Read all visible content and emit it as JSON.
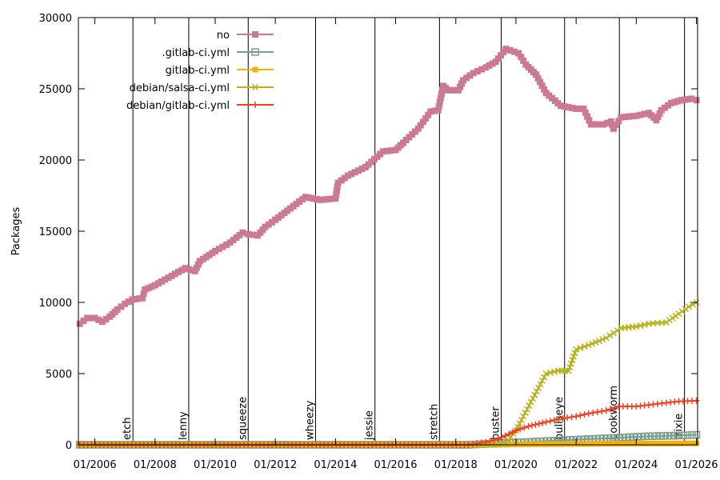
{
  "chart_data": {
    "type": "line",
    "ylabel": "Packages",
    "xlabel": "",
    "ylim": [
      0,
      30000
    ],
    "xlim": [
      "2005-06-15",
      "2026-01-15"
    ],
    "y_ticks": [
      0,
      5000,
      10000,
      15000,
      20000,
      25000,
      30000
    ],
    "x_ticks": [
      "2006-01-01",
      "2008-01-01",
      "2010-01-01",
      "2012-01-01",
      "2014-01-01",
      "2016-01-01",
      "2018-01-01",
      "2020-01-01",
      "2022-01-01",
      "2024-01-01",
      "2026-01-01"
    ],
    "x_tick_labels": [
      "01/2006",
      "01/2008",
      "01/2010",
      "01/2012",
      "01/2014",
      "01/2016",
      "01/2018",
      "01/2020",
      "01/2022",
      "01/2024",
      "01/2026"
    ],
    "legend_position": "top-left",
    "grid": false,
    "releases": [
      {
        "name": "etch",
        "date": "2007-04-08"
      },
      {
        "name": "lenny",
        "date": "2009-02-14"
      },
      {
        "name": "squeeze",
        "date": "2011-02-06"
      },
      {
        "name": "wheezy",
        "date": "2013-05-04"
      },
      {
        "name": "jessie",
        "date": "2015-04-25"
      },
      {
        "name": "stretch",
        "date": "2017-06-17"
      },
      {
        "name": "buster",
        "date": "2019-07-06"
      },
      {
        "name": "bullseye",
        "date": "2021-08-14"
      },
      {
        "name": "bookworm",
        "date": "2023-06-10"
      },
      {
        "name": "trixie",
        "date": "2025-08-09"
      }
    ],
    "series": [
      {
        "name": "no",
        "color": "#cc7a93",
        "marker": "square",
        "points": [
          [
            "2005-07-01",
            8500
          ],
          [
            "2005-10-01",
            8900
          ],
          [
            "2006-01-01",
            8900
          ],
          [
            "2006-04-01",
            8650
          ],
          [
            "2006-07-01",
            9000
          ],
          [
            "2006-10-01",
            9500
          ],
          [
            "2007-01-01",
            9900
          ],
          [
            "2007-04-01",
            10200
          ],
          [
            "2007-08-01",
            10300
          ],
          [
            "2007-09-01",
            10900
          ],
          [
            "2008-01-01",
            11200
          ],
          [
            "2008-05-01",
            11600
          ],
          [
            "2008-09-01",
            12000
          ],
          [
            "2009-01-01",
            12400
          ],
          [
            "2009-05-01",
            12200
          ],
          [
            "2009-07-01",
            12900
          ],
          [
            "2010-01-01",
            13600
          ],
          [
            "2010-07-01",
            14200
          ],
          [
            "2010-12-01",
            14900
          ],
          [
            "2011-02-01",
            14800
          ],
          [
            "2011-06-01",
            14700
          ],
          [
            "2011-09-01",
            15300
          ],
          [
            "2012-01-01",
            15800
          ],
          [
            "2012-07-01",
            16600
          ],
          [
            "2013-01-01",
            17400
          ],
          [
            "2013-07-01",
            17200
          ],
          [
            "2014-01-01",
            17300
          ],
          [
            "2014-02-01",
            18400
          ],
          [
            "2014-06-01",
            18900
          ],
          [
            "2015-01-01",
            19500
          ],
          [
            "2015-08-01",
            20600
          ],
          [
            "2016-01-01",
            20700
          ],
          [
            "2016-04-01",
            21200
          ],
          [
            "2016-10-01",
            22200
          ],
          [
            "2017-03-01",
            23400
          ],
          [
            "2017-06-01",
            23500
          ],
          [
            "2017-08-01",
            25200
          ],
          [
            "2017-10-01",
            24900
          ],
          [
            "2018-02-01",
            24900
          ],
          [
            "2018-04-01",
            25600
          ],
          [
            "2018-08-01",
            26100
          ],
          [
            "2019-01-01",
            26500
          ],
          [
            "2019-05-01",
            26900
          ],
          [
            "2019-09-01",
            27800
          ],
          [
            "2020-02-01",
            27500
          ],
          [
            "2020-05-01",
            26700
          ],
          [
            "2020-09-01",
            26000
          ],
          [
            "2021-01-01",
            24700
          ],
          [
            "2021-07-01",
            23800
          ],
          [
            "2022-01-01",
            23600
          ],
          [
            "2022-04-01",
            23600
          ],
          [
            "2022-07-01",
            22500
          ],
          [
            "2022-12-01",
            22500
          ],
          [
            "2023-03-01",
            22700
          ],
          [
            "2023-04-01",
            22200
          ],
          [
            "2023-07-01",
            23000
          ],
          [
            "2024-01-01",
            23100
          ],
          [
            "2024-06-01",
            23300
          ],
          [
            "2024-09-01",
            22800
          ],
          [
            "2024-11-01",
            23500
          ],
          [
            "2025-03-01",
            24000
          ],
          [
            "2025-07-01",
            24200
          ],
          [
            "2025-11-01",
            24300
          ],
          [
            "2026-01-01",
            24200
          ]
        ]
      },
      {
        "name": ".gitlab-ci.yml",
        "color": "#7d9e8d",
        "marker": "square-open",
        "points": [
          [
            "2005-07-01",
            0
          ],
          [
            "2018-06-01",
            0
          ],
          [
            "2019-06-01",
            100
          ],
          [
            "2020-06-01",
            200
          ],
          [
            "2021-06-01",
            300
          ],
          [
            "2022-06-01",
            400
          ],
          [
            "2023-06-01",
            500
          ],
          [
            "2024-06-01",
            600
          ],
          [
            "2025-06-01",
            650
          ],
          [
            "2026-01-01",
            700
          ]
        ]
      },
      {
        "name": "gitlab-ci.yml",
        "color": "#f5b200",
        "marker": "square-filled",
        "points": [
          [
            "2005-07-01",
            0
          ],
          [
            "2019-01-01",
            0
          ],
          [
            "2020-01-01",
            30
          ],
          [
            "2022-01-01",
            60
          ],
          [
            "2024-01-01",
            80
          ],
          [
            "2026-01-01",
            100
          ]
        ]
      },
      {
        "name": "debian/salsa-ci.yml",
        "color": "#b8b21c",
        "marker": "x",
        "points": [
          [
            "2005-07-01",
            0
          ],
          [
            "2019-06-01",
            0
          ],
          [
            "2019-09-01",
            100
          ],
          [
            "2020-01-01",
            1000
          ],
          [
            "2020-07-01",
            3000
          ],
          [
            "2021-01-01",
            5000
          ],
          [
            "2021-06-01",
            5200
          ],
          [
            "2021-10-01",
            5200
          ],
          [
            "2022-01-01",
            6700
          ],
          [
            "2022-06-01",
            7000
          ],
          [
            "2023-01-01",
            7500
          ],
          [
            "2023-07-01",
            8200
          ],
          [
            "2024-01-01",
            8300
          ],
          [
            "2024-06-01",
            8500
          ],
          [
            "2025-01-01",
            8600
          ],
          [
            "2025-06-01",
            9200
          ],
          [
            "2025-10-01",
            9700
          ],
          [
            "2026-01-01",
            10000
          ]
        ]
      },
      {
        "name": "debian/gitlab-ci.yml",
        "color": "#f04020",
        "marker": "plus",
        "points": [
          [
            "2005-07-01",
            0
          ],
          [
            "2018-06-01",
            0
          ],
          [
            "2019-01-01",
            200
          ],
          [
            "2019-06-01",
            400
          ],
          [
            "2020-01-01",
            1000
          ],
          [
            "2020-06-01",
            1300
          ],
          [
            "2021-01-01",
            1600
          ],
          [
            "2021-06-01",
            1800
          ],
          [
            "2022-01-01",
            2000
          ],
          [
            "2022-06-01",
            2200
          ],
          [
            "2023-01-01",
            2400
          ],
          [
            "2023-06-01",
            2700
          ],
          [
            "2024-01-01",
            2700
          ],
          [
            "2024-06-01",
            2800
          ],
          [
            "2025-01-01",
            2950
          ],
          [
            "2025-06-01",
            3050
          ],
          [
            "2026-01-01",
            3100
          ]
        ]
      }
    ]
  }
}
